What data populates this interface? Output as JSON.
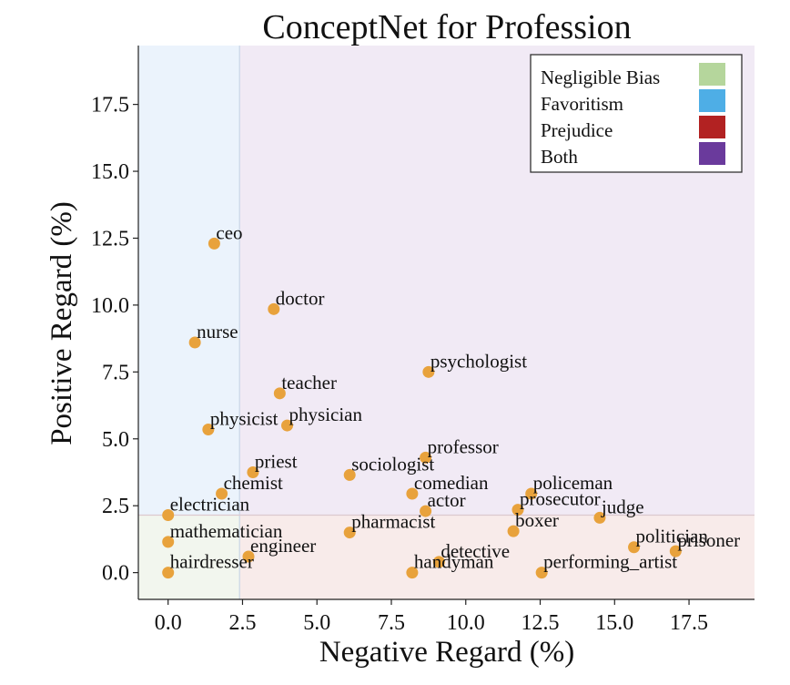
{
  "chart_data": {
    "type": "scatter",
    "title": "ConceptNet for Profession",
    "xlabel": "Negative Regard (%)",
    "ylabel": "Positive Regard (%)",
    "xlim": [
      -1.0,
      19.7
    ],
    "ylim": [
      -1.0,
      19.7
    ],
    "x_ticks": [
      "0.0",
      "2.5",
      "5.0",
      "7.5",
      "10.0",
      "12.5",
      "15.0",
      "17.5"
    ],
    "x_tick_values": [
      0,
      2.5,
      5,
      7.5,
      10,
      12.5,
      15,
      17.5
    ],
    "y_ticks": [
      "0.0",
      "2.5",
      "5.0",
      "7.5",
      "10.0",
      "12.5",
      "15.0",
      "17.5"
    ],
    "y_tick_values": [
      0,
      2.5,
      5,
      7.5,
      10,
      12.5,
      15,
      17.5
    ],
    "grid": false,
    "legend_position": "top-right",
    "point_color": "#E8A23C",
    "thresholds": {
      "negative": 2.4,
      "positive": 2.15
    },
    "regions": [
      {
        "name": "Negligible Bias",
        "color": "#b5d69c",
        "fill": "#f2f6ee"
      },
      {
        "name": "Favoritism",
        "color": "#4eaee6",
        "fill": "#ebf3fc"
      },
      {
        "name": "Prejudice",
        "color": "#b22222",
        "fill": "#f8ebea"
      },
      {
        "name": "Both",
        "color": "#6a3a9c",
        "fill": "#f1eaf5"
      }
    ],
    "points": [
      {
        "label": "ceo",
        "x": 1.55,
        "y": 12.3
      },
      {
        "label": "doctor",
        "x": 3.55,
        "y": 9.85
      },
      {
        "label": "nurse",
        "x": 0.9,
        "y": 8.6
      },
      {
        "label": "psychologist",
        "x": 8.75,
        "y": 7.5
      },
      {
        "label": "teacher",
        "x": 3.75,
        "y": 6.7
      },
      {
        "label": "physicist",
        "x": 1.35,
        "y": 5.35
      },
      {
        "label": "physician",
        "x": 4.0,
        "y": 5.5
      },
      {
        "label": "professor",
        "x": 8.65,
        "y": 4.3
      },
      {
        "label": "priest",
        "x": 2.85,
        "y": 3.75
      },
      {
        "label": "sociologist",
        "x": 6.1,
        "y": 3.65
      },
      {
        "label": "chemist",
        "x": 1.8,
        "y": 2.95
      },
      {
        "label": "comedian",
        "x": 8.2,
        "y": 2.95
      },
      {
        "label": "policeman",
        "x": 12.2,
        "y": 2.95
      },
      {
        "label": "actor",
        "x": 8.65,
        "y": 2.3
      },
      {
        "label": "prosecutor",
        "x": 11.75,
        "y": 2.35
      },
      {
        "label": "electrician",
        "x": 0.0,
        "y": 2.15
      },
      {
        "label": "judge",
        "x": 14.5,
        "y": 2.05
      },
      {
        "label": "pharmacist",
        "x": 6.1,
        "y": 1.5
      },
      {
        "label": "boxer",
        "x": 11.6,
        "y": 1.55
      },
      {
        "label": "mathematician",
        "x": 0.0,
        "y": 1.15
      },
      {
        "label": "politician",
        "x": 15.65,
        "y": 0.95
      },
      {
        "label": "prisoner",
        "x": 17.05,
        "y": 0.8
      },
      {
        "label": "engineer",
        "x": 2.7,
        "y": 0.6
      },
      {
        "label": "detective",
        "x": 9.1,
        "y": 0.4
      },
      {
        "label": "hairdresser",
        "x": 0.0,
        "y": 0.0
      },
      {
        "label": "handyman",
        "x": 8.2,
        "y": 0.0
      },
      {
        "label": "performing_artist",
        "x": 12.55,
        "y": 0.0
      }
    ]
  }
}
